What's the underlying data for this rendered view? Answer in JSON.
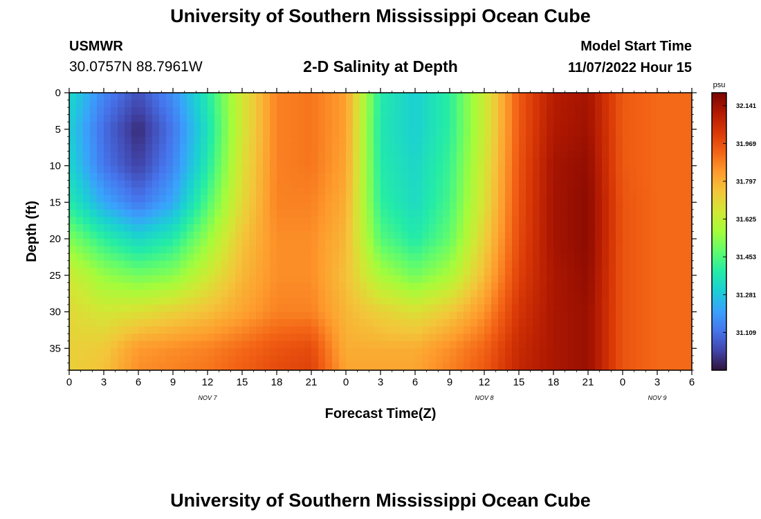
{
  "header": {
    "title": "University of Southern Mississippi Ocean Cube",
    "station": "USMWR",
    "coords": "30.0757N  88.7961W",
    "subtitle": "2-D Salinity at Depth",
    "model_label": "Model Start Time",
    "model_time": "11/07/2022 Hour 15"
  },
  "footer": {
    "title": "University of Southern Mississippi Ocean Cube"
  },
  "chart_data": {
    "type": "heatmap",
    "xlabel": "Forecast Time(Z)",
    "ylabel": "Depth (ft)",
    "x_ticks": [
      "0",
      "3",
      "6",
      "9",
      "12",
      "15",
      "18",
      "21",
      "0",
      "3",
      "6",
      "9",
      "12",
      "15",
      "18",
      "21",
      "0",
      "3",
      "6"
    ],
    "x_range_hours": [
      0,
      54
    ],
    "date_labels": [
      {
        "label": "NOV 7",
        "hour": 12
      },
      {
        "label": "NOV 8",
        "hour": 36
      },
      {
        "label": "NOV 9",
        "hour": 51
      }
    ],
    "y_ticks": [
      0,
      5,
      10,
      15,
      20,
      25,
      30,
      35
    ],
    "y_range": [
      0,
      38
    ],
    "y_reversed": true,
    "colorbar": {
      "unit": "psu",
      "min": 30.937,
      "max": 32.2,
      "ticks": [
        32.141,
        31.969,
        31.797,
        31.625,
        31.453,
        31.281,
        31.109
      ],
      "tick_labels": [
        "32.141",
        "31.969",
        "31.797",
        "31.625",
        "31.453",
        "31.281",
        "31.109"
      ],
      "colors": [
        "#30123b",
        "#4145ab",
        "#4675ed",
        "#39a2fc",
        "#1bcfd4",
        "#24eca6",
        "#61fc6c",
        "#a4fc3b",
        "#d1e834",
        "#f3c63a",
        "#fe9b2d",
        "#f36315",
        "#d93806",
        "#b11901",
        "#7a0402"
      ]
    },
    "depth_levels_ft": [
      0,
      5,
      10,
      15,
      20,
      25,
      30,
      35,
      38
    ],
    "time_hours": [
      0,
      3,
      6,
      9,
      12,
      15,
      18,
      21,
      24,
      27,
      30,
      33,
      36,
      39,
      42,
      45,
      48,
      51,
      54
    ],
    "salinity_psu": [
      [
        31.33,
        31.15,
        31.05,
        31.17,
        31.38,
        31.66,
        31.88,
        31.9,
        31.83,
        31.38,
        31.3,
        31.4,
        31.64,
        31.95,
        32.1,
        32.13,
        31.95,
        31.92,
        31.92
      ],
      [
        31.3,
        31.1,
        30.98,
        31.12,
        31.35,
        31.66,
        31.88,
        31.9,
        31.83,
        31.37,
        31.3,
        31.4,
        31.64,
        31.95,
        32.11,
        32.14,
        31.95,
        31.92,
        31.92
      ],
      [
        31.32,
        31.12,
        31.02,
        31.15,
        31.38,
        31.68,
        31.88,
        31.9,
        31.82,
        31.38,
        31.32,
        31.42,
        31.66,
        31.96,
        32.13,
        32.16,
        31.95,
        31.92,
        31.92
      ],
      [
        31.38,
        31.22,
        31.12,
        31.22,
        31.45,
        31.7,
        31.88,
        31.88,
        31.8,
        31.4,
        31.33,
        31.44,
        31.68,
        31.97,
        32.13,
        32.17,
        31.96,
        31.92,
        31.92
      ],
      [
        31.52,
        31.4,
        31.32,
        31.38,
        31.55,
        31.75,
        31.86,
        31.86,
        31.78,
        31.46,
        31.38,
        31.48,
        31.72,
        31.98,
        32.13,
        32.17,
        31.96,
        31.92,
        31.92
      ],
      [
        31.65,
        31.55,
        31.5,
        31.53,
        31.65,
        31.78,
        31.86,
        31.86,
        31.76,
        31.58,
        31.5,
        31.58,
        31.77,
        32.0,
        32.12,
        32.16,
        31.96,
        31.92,
        31.92
      ],
      [
        31.7,
        31.66,
        31.68,
        31.72,
        31.76,
        31.82,
        31.88,
        31.88,
        31.78,
        31.72,
        31.68,
        31.74,
        31.85,
        32.03,
        32.12,
        32.15,
        31.96,
        31.92,
        31.92
      ],
      [
        31.72,
        31.74,
        31.84,
        31.86,
        31.88,
        31.92,
        31.96,
        31.98,
        31.8,
        31.8,
        31.8,
        31.86,
        31.93,
        32.06,
        32.12,
        32.15,
        31.96,
        31.92,
        31.92
      ],
      [
        31.72,
        31.76,
        31.86,
        31.88,
        31.9,
        31.94,
        31.98,
        32.0,
        31.82,
        31.82,
        31.82,
        31.88,
        31.95,
        32.07,
        32.12,
        32.15,
        31.96,
        31.92,
        31.92
      ]
    ]
  }
}
